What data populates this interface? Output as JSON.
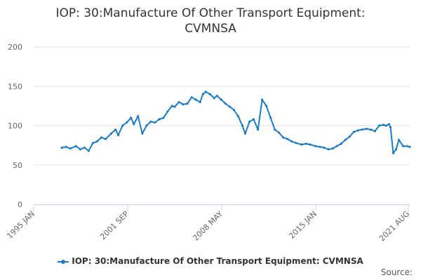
{
  "chart_title": {
    "line1": "IOP: 30:Manufacture Of Other Transport Equipment:",
    "line2": "CVMNSA"
  },
  "legend_label": "IOP: 30:Manufacture Of Other Transport Equipment: CVMNSA",
  "source_label": "Source:",
  "colors": {
    "series": "#1f7bc1",
    "grid": "#e6e6e6",
    "axis": "#ccd6eb",
    "text": "#666666"
  },
  "chart_data": {
    "type": "line",
    "title": "IOP: 30:Manufacture Of Other Transport Equipment: CVMNSA",
    "xlabel": "",
    "ylabel": "",
    "ylim": [
      0,
      200
    ],
    "yticks": [
      0,
      50,
      100,
      150,
      200
    ],
    "xlim": [
      1995.0,
      2021.67
    ],
    "xticks": [
      {
        "value": 1995.0,
        "label": "1995 JAN"
      },
      {
        "value": 2001.67,
        "label": "2001 SEP"
      },
      {
        "value": 2008.33,
        "label": "2008 MAY"
      },
      {
        "value": 2015.0,
        "label": "2015 JAN"
      },
      {
        "value": 2021.58,
        "label": "2021 AUG"
      }
    ],
    "grid": true,
    "legend": "bottom-center",
    "series": [
      {
        "name": "IOP: 30:Manufacture Of Other Transport Equipment: CVMNSA",
        "x": [
          1997.0,
          1997.3,
          1997.6,
          1998.0,
          1998.3,
          1998.6,
          1998.9,
          1999.2,
          1999.5,
          1999.8,
          2000.1,
          2000.5,
          2000.8,
          2001.0,
          2001.3,
          2001.6,
          2001.9,
          2002.1,
          2002.4,
          2002.7,
          2003.0,
          2003.3,
          2003.6,
          2003.9,
          2004.2,
          2004.5,
          2004.8,
          2005.0,
          2005.3,
          2005.6,
          2005.9,
          2006.2,
          2006.5,
          2006.8,
          2007.0,
          2007.2,
          2007.5,
          2007.8,
          2008.0,
          2008.3,
          2008.6,
          2008.9,
          2009.2,
          2009.5,
          2009.8,
          2010.0,
          2010.3,
          2010.6,
          2010.9,
          2011.2,
          2011.5,
          2011.8,
          2012.1,
          2012.4,
          2012.7,
          2013.0,
          2013.3,
          2013.6,
          2014.0,
          2014.3,
          2014.6,
          2015.0,
          2015.3,
          2015.6,
          2015.9,
          2016.2,
          2016.5,
          2016.8,
          2017.1,
          2017.4,
          2017.7,
          2018.0,
          2018.3,
          2018.6,
          2018.9,
          2019.2,
          2019.5,
          2019.8,
          2020.0,
          2020.2,
          2020.3,
          2020.5,
          2020.7,
          2020.9,
          2021.2,
          2021.5,
          2021.67
        ],
        "values": [
          72,
          73,
          71,
          74,
          70,
          72,
          68,
          78,
          80,
          85,
          83,
          90,
          95,
          88,
          100,
          104,
          110,
          102,
          112,
          90,
          100,
          105,
          104,
          108,
          110,
          118,
          125,
          124,
          130,
          127,
          128,
          136,
          133,
          130,
          140,
          143,
          140,
          135,
          138,
          133,
          128,
          124,
          120,
          112,
          100,
          90,
          105,
          108,
          95,
          133,
          125,
          110,
          95,
          91,
          85,
          83,
          80,
          78,
          76,
          77,
          76,
          74,
          73,
          72,
          70,
          71,
          74,
          77,
          82,
          86,
          92,
          94,
          95,
          96,
          95,
          93,
          100,
          101,
          100,
          102,
          98,
          65,
          70,
          82,
          74,
          74,
          73
        ]
      }
    ]
  }
}
